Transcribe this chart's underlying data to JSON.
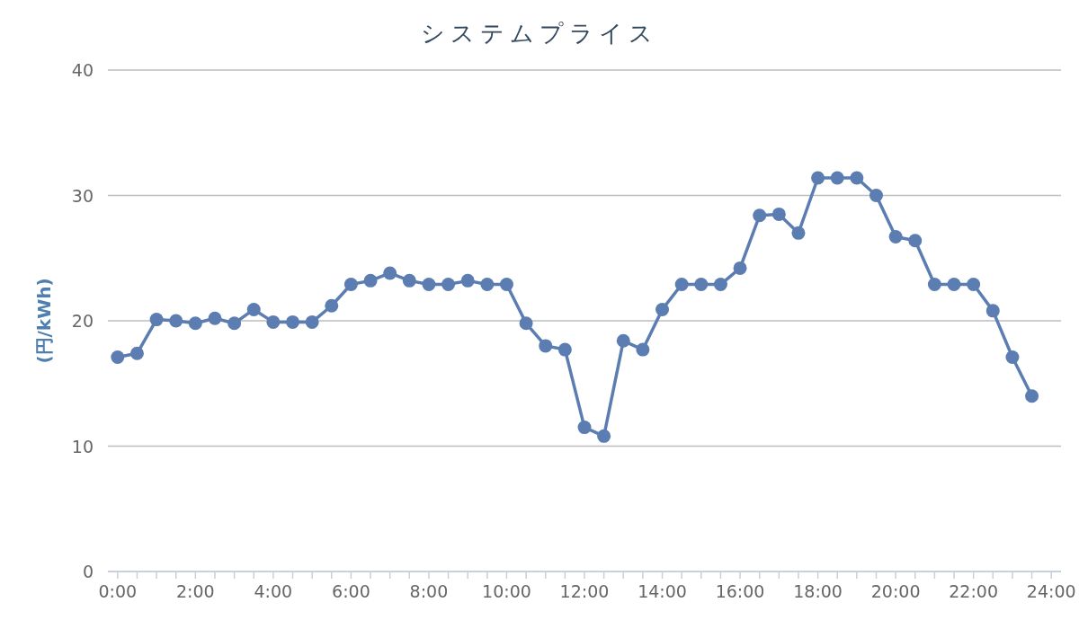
{
  "chart_data": {
    "type": "line",
    "title": "システムプライス",
    "ylabel": "(円/kWh)",
    "x": [
      0,
      0.5,
      1,
      1.5,
      2,
      2.5,
      3,
      3.5,
      4,
      4.5,
      5,
      5.5,
      6,
      6.5,
      7,
      7.5,
      8,
      8.5,
      9,
      9.5,
      10,
      10.5,
      11,
      11.5,
      12,
      12.5,
      13,
      13.5,
      14,
      14.5,
      15,
      15.5,
      16,
      16.5,
      17,
      17.5,
      18,
      18.5,
      19,
      19.5,
      20,
      20.5,
      21,
      21.5,
      22,
      22.5,
      23,
      23.5
    ],
    "series": [
      {
        "color": "#5b7db1",
        "values": [
          17.1,
          17.4,
          20.1,
          20.0,
          19.8,
          20.2,
          19.8,
          20.9,
          19.9,
          19.9,
          19.9,
          21.2,
          22.9,
          23.2,
          23.8,
          23.2,
          22.9,
          22.9,
          23.2,
          22.9,
          22.9,
          19.8,
          18.0,
          17.7,
          11.5,
          10.8,
          18.4,
          17.7,
          20.9,
          22.9,
          22.9,
          22.9,
          24.2,
          28.4,
          28.5,
          27.0,
          31.4,
          31.4,
          31.4,
          30.0,
          26.7,
          26.4,
          22.9,
          22.9,
          22.9,
          20.8,
          17.1,
          14.0
        ]
      }
    ],
    "xlim": [
      -0.25,
      24.25
    ],
    "xticks": [
      {
        "value": 0,
        "label": "0:00"
      },
      {
        "value": 0.5,
        "label": null
      },
      {
        "value": 1,
        "label": null
      },
      {
        "value": 1.5,
        "label": null
      },
      {
        "value": 2,
        "label": "2:00"
      },
      {
        "value": 2.5,
        "label": null
      },
      {
        "value": 3,
        "label": null
      },
      {
        "value": 3.5,
        "label": null
      },
      {
        "value": 4,
        "label": "4:00"
      },
      {
        "value": 4.5,
        "label": null
      },
      {
        "value": 5,
        "label": null
      },
      {
        "value": 5.5,
        "label": null
      },
      {
        "value": 6,
        "label": "6:00"
      },
      {
        "value": 6.5,
        "label": null
      },
      {
        "value": 7,
        "label": null
      },
      {
        "value": 7.5,
        "label": null
      },
      {
        "value": 8,
        "label": "8:00"
      },
      {
        "value": 8.5,
        "label": null
      },
      {
        "value": 9,
        "label": null
      },
      {
        "value": 9.5,
        "label": null
      },
      {
        "value": 10,
        "label": "10:00"
      },
      {
        "value": 10.5,
        "label": null
      },
      {
        "value": 11,
        "label": null
      },
      {
        "value": 11.5,
        "label": null
      },
      {
        "value": 12,
        "label": "12:00"
      },
      {
        "value": 12.5,
        "label": null
      },
      {
        "value": 13,
        "label": null
      },
      {
        "value": 13.5,
        "label": null
      },
      {
        "value": 14,
        "label": "14:00"
      },
      {
        "value": 14.5,
        "label": null
      },
      {
        "value": 15,
        "label": null
      },
      {
        "value": 15.5,
        "label": null
      },
      {
        "value": 16,
        "label": "16:00"
      },
      {
        "value": 16.5,
        "label": null
      },
      {
        "value": 17,
        "label": null
      },
      {
        "value": 17.5,
        "label": null
      },
      {
        "value": 18,
        "label": "18:00"
      },
      {
        "value": 18.5,
        "label": null
      },
      {
        "value": 19,
        "label": null
      },
      {
        "value": 19.5,
        "label": null
      },
      {
        "value": 20,
        "label": "20:00"
      },
      {
        "value": 20.5,
        "label": null
      },
      {
        "value": 21,
        "label": null
      },
      {
        "value": 21.5,
        "label": null
      },
      {
        "value": 22,
        "label": "22:00"
      },
      {
        "value": 22.5,
        "label": null
      },
      {
        "value": 23,
        "label": null
      },
      {
        "value": 23.5,
        "label": null
      },
      {
        "value": 24,
        "label": "24:00"
      }
    ],
    "ylim": [
      0,
      40
    ],
    "yticks": [
      0,
      10,
      20,
      30,
      40
    ],
    "grid": "y",
    "marker": "circle",
    "line_style": "solid"
  }
}
